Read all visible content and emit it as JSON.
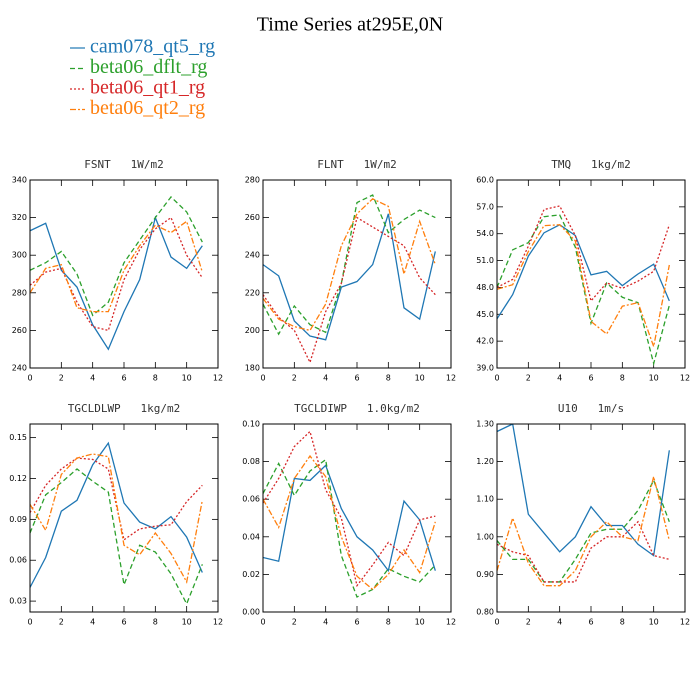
{
  "title": "Time Series at295E,0N",
  "legend": [
    {
      "name": "cam078_qt5_rg",
      "color": "#1f77b4",
      "style": "solid"
    },
    {
      "name": "beta06_dflt_rg",
      "color": "#2ca02c",
      "style": "dashed"
    },
    {
      "name": "beta06_qt1_rg",
      "color": "#d62728",
      "style": "dotted"
    },
    {
      "name": "beta06_qt2_rg",
      "color": "#ff7f0e",
      "style": "dashdot"
    }
  ],
  "chart_data": [
    {
      "type": "line",
      "title": "FSNT   1W/m2",
      "x": [
        0,
        1,
        2,
        3,
        4,
        5,
        6,
        7,
        8,
        9,
        10,
        11
      ],
      "xlim": [
        0,
        12
      ],
      "xticks": [
        0,
        2,
        4,
        6,
        8,
        10,
        12
      ],
      "ylim": [
        240,
        340
      ],
      "yticks": [
        240,
        260,
        280,
        300,
        320,
        340
      ],
      "series": [
        {
          "values": [
            313,
            317,
            292,
            283,
            263,
            250,
            270,
            287,
            320,
            299,
            293,
            305
          ]
        },
        {
          "values": [
            292,
            296,
            302,
            290,
            268,
            275,
            296,
            308,
            320,
            331,
            323,
            307
          ]
        },
        {
          "values": [
            284,
            291,
            293,
            275,
            262,
            260,
            287,
            303,
            314,
            320,
            300,
            288
          ]
        },
        {
          "values": [
            280,
            293,
            295,
            272,
            270,
            270,
            292,
            305,
            316,
            312,
            318,
            291
          ]
        }
      ]
    },
    {
      "type": "line",
      "title": "FLNT   1W/m2",
      "x": [
        0,
        1,
        2,
        3,
        4,
        5,
        6,
        7,
        8,
        9,
        10,
        11
      ],
      "xlim": [
        0,
        12
      ],
      "xticks": [
        0,
        2,
        4,
        6,
        8,
        10,
        12
      ],
      "ylim": [
        180,
        280
      ],
      "yticks": [
        180,
        200,
        220,
        240,
        260,
        280
      ],
      "series": [
        {
          "values": [
            235,
            229,
            205,
            197,
            195,
            223,
            226,
            235,
            262,
            212,
            206,
            242
          ]
        },
        {
          "values": [
            214,
            198,
            213,
            203,
            199,
            225,
            268,
            272,
            252,
            259,
            264,
            260
          ]
        },
        {
          "values": [
            219,
            207,
            200,
            183,
            210,
            225,
            260,
            255,
            250,
            245,
            228,
            219
          ]
        },
        {
          "values": [
            217,
            206,
            202,
            200,
            214,
            245,
            262,
            270,
            266,
            230,
            258,
            235
          ]
        }
      ]
    },
    {
      "type": "line",
      "title": "TMQ   1kg/m2",
      "x": [
        0,
        1,
        2,
        3,
        4,
        5,
        6,
        7,
        8,
        9,
        10,
        11
      ],
      "xlim": [
        0,
        12
      ],
      "xticks": [
        0,
        2,
        4,
        6,
        8,
        10,
        12
      ],
      "ylim": [
        39,
        60
      ],
      "yticks": [
        {
          "value": 39,
          "label": "39.0"
        },
        {
          "value": 42,
          "label": "42.0"
        },
        {
          "value": 45,
          "label": "45.0"
        },
        {
          "value": 48,
          "label": "48.0"
        },
        {
          "value": 51,
          "label": "51.0"
        },
        {
          "value": 54,
          "label": "54.0"
        },
        {
          "value": 57,
          "label": "57.0"
        },
        {
          "value": 60,
          "label": "60.0"
        }
      ],
      "series": [
        {
          "values": [
            44.5,
            47.2,
            51.5,
            54.1,
            55.0,
            53.8,
            49.4,
            49.8,
            48.2,
            49.5,
            50.6,
            46.5
          ]
        },
        {
          "values": [
            48.0,
            52.2,
            53.0,
            55.9,
            56.1,
            52.5,
            44.0,
            48.5,
            46.9,
            46.3,
            39.5,
            46.0
          ]
        },
        {
          "values": [
            48.0,
            48.9,
            52.6,
            56.7,
            57.1,
            53.8,
            46.5,
            48.5,
            47.9,
            48.7,
            49.8,
            55.0
          ]
        },
        {
          "values": [
            47.8,
            48.3,
            52.0,
            54.9,
            55.0,
            53.2,
            44.2,
            42.8,
            45.9,
            46.3,
            41.4,
            50.5
          ]
        }
      ]
    },
    {
      "type": "line",
      "title": "TGCLDLWP   1kg/m2",
      "x": [
        0,
        1,
        2,
        3,
        4,
        5,
        6,
        7,
        8,
        9,
        10,
        11
      ],
      "xlim": [
        0,
        12
      ],
      "xticks": [
        0,
        2,
        4,
        6,
        8,
        10,
        12
      ],
      "ylim": [
        0.022,
        0.16
      ],
      "yticks": [
        0.03,
        0.06,
        0.09,
        0.12,
        0.15
      ],
      "series": [
        {
          "values": [
            0.04,
            0.062,
            0.096,
            0.104,
            0.13,
            0.146,
            0.102,
            0.088,
            0.083,
            0.092,
            0.077,
            0.051
          ]
        },
        {
          "values": [
            0.08,
            0.108,
            0.117,
            0.127,
            0.118,
            0.11,
            0.042,
            0.071,
            0.066,
            0.05,
            0.028,
            0.057
          ]
        },
        {
          "values": [
            0.095,
            0.115,
            0.127,
            0.135,
            0.134,
            0.127,
            0.075,
            0.083,
            0.085,
            0.086,
            0.103,
            0.115
          ]
        },
        {
          "values": [
            0.101,
            0.082,
            0.123,
            0.135,
            0.138,
            0.136,
            0.071,
            0.064,
            0.08,
            0.065,
            0.044,
            0.104
          ]
        }
      ]
    },
    {
      "type": "line",
      "title": "TGCLDIWP   1.0kg/m2",
      "x": [
        0,
        1,
        2,
        3,
        4,
        5,
        6,
        7,
        8,
        9,
        10,
        11
      ],
      "xlim": [
        0,
        12
      ],
      "xticks": [
        0,
        2,
        4,
        6,
        8,
        10,
        12
      ],
      "ylim": [
        0,
        0.1
      ],
      "yticks": [
        {
          "value": 0,
          "label": "0.00"
        },
        0.02,
        0.04,
        0.06,
        0.08,
        {
          "value": 0.1,
          "label": "0.10"
        }
      ],
      "series": [
        {
          "values": [
            0.029,
            0.027,
            0.071,
            0.07,
            0.078,
            0.055,
            0.04,
            0.033,
            0.022,
            0.059,
            0.049,
            0.022
          ]
        },
        {
          "values": [
            0.063,
            0.079,
            0.062,
            0.075,
            0.081,
            0.03,
            0.008,
            0.012,
            0.023,
            0.019,
            0.016,
            0.025
          ]
        },
        {
          "values": [
            0.058,
            0.071,
            0.088,
            0.096,
            0.065,
            0.05,
            0.014,
            0.025,
            0.037,
            0.03,
            0.049,
            0.051
          ]
        },
        {
          "values": [
            0.06,
            0.045,
            0.071,
            0.083,
            0.072,
            0.04,
            0.019,
            0.012,
            0.02,
            0.033,
            0.021,
            0.048
          ]
        }
      ]
    },
    {
      "type": "line",
      "title": "U10   1m/s",
      "x": [
        0,
        1,
        2,
        3,
        4,
        5,
        6,
        7,
        8,
        9,
        10,
        11
      ],
      "xlim": [
        0,
        12
      ],
      "xticks": [
        0,
        2,
        4,
        6,
        8,
        10,
        12
      ],
      "ylim": [
        0.8,
        1.3
      ],
      "yticks": [
        {
          "value": 0.8,
          "label": "0.80"
        },
        {
          "value": 0.9,
          "label": "0.90"
        },
        {
          "value": 1.0,
          "label": "1.00"
        },
        {
          "value": 1.1,
          "label": "1.10"
        },
        {
          "value": 1.2,
          "label": "1.20"
        },
        {
          "value": 1.3,
          "label": "1.30"
        }
      ],
      "series": [
        {
          "values": [
            1.28,
            1.3,
            1.06,
            1.01,
            0.96,
            1.0,
            1.08,
            1.03,
            1.03,
            0.98,
            0.95,
            1.23
          ]
        },
        {
          "values": [
            0.99,
            0.94,
            0.94,
            0.88,
            0.88,
            0.94,
            1.01,
            1.02,
            1.02,
            1.07,
            1.15,
            1.04
          ]
        },
        {
          "values": [
            0.98,
            0.96,
            0.95,
            0.88,
            0.88,
            0.88,
            0.97,
            1.0,
            1.0,
            1.04,
            0.95,
            0.94
          ]
        },
        {
          "values": [
            0.91,
            1.05,
            0.93,
            0.87,
            0.87,
            0.91,
            1.0,
            1.04,
            1.0,
            0.99,
            1.16,
            0.99
          ]
        }
      ]
    }
  ]
}
